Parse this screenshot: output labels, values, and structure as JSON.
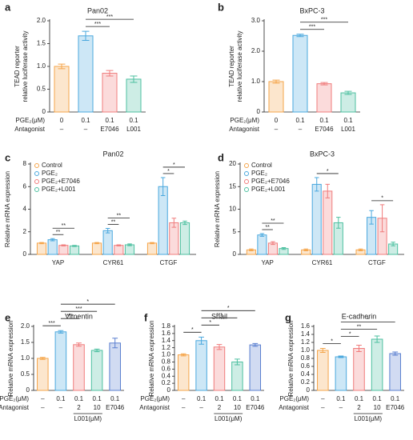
{
  "chart_data": [
    {
      "type": "bar",
      "panel": "a",
      "title": "Pan02",
      "ylabel": [
        "TEAD reporter",
        "relative luciferase activity"
      ],
      "values": [
        1.0,
        1.67,
        0.85,
        0.72
      ],
      "errors": [
        0.05,
        0.1,
        0.06,
        0.07
      ],
      "colors": [
        "#f5a54a",
        "#4aa8de",
        "#f07c7c",
        "#4dc0a0"
      ],
      "ylim": [
        0,
        2.0
      ],
      "yticks": [
        0,
        0.5,
        {
          "value": 1.0,
          "label": "1.0"
        },
        1.5,
        {
          "value": 2.0,
          "label": "2.0"
        }
      ],
      "rows": [
        {
          "label": "PGE₂(μM)",
          "values": [
            "0",
            "0.1",
            "0.1",
            "0.1"
          ]
        },
        {
          "label": "Antagonist",
          "values": [
            "–",
            "–",
            "E7046",
            "L001"
          ]
        }
      ],
      "comparisons": [
        {
          "from": 1,
          "to": 2,
          "label": "***"
        },
        {
          "from": 1,
          "to": 3,
          "label": "***"
        }
      ]
    },
    {
      "type": "bar",
      "panel": "b",
      "title": "BxPC-3",
      "ylabel": [
        "TEAD reporter",
        "relative luciferase activity"
      ],
      "values": [
        1.0,
        2.52,
        0.93,
        0.63
      ],
      "errors": [
        0.05,
        0.04,
        0.04,
        0.05
      ],
      "colors": [
        "#f5a54a",
        "#4aa8de",
        "#f07c7c",
        "#4dc0a0"
      ],
      "ylim": [
        0,
        3.0
      ],
      "yticks": [
        0,
        {
          "value": 1.0,
          "label": "1.0"
        },
        {
          "value": 2.0,
          "label": "2.0"
        },
        {
          "value": 3.0,
          "label": "3.0"
        }
      ],
      "rows": [
        {
          "label": "PGE₂(μM)",
          "values": [
            "0",
            "0.1",
            "0.1",
            "0.1"
          ]
        },
        {
          "label": "Antagonist",
          "values": [
            "–",
            "–",
            "E7046",
            "L001"
          ]
        }
      ],
      "comparisons": [
        {
          "from": 1,
          "to": 2,
          "label": "***"
        },
        {
          "from": 1,
          "to": 3,
          "label": "***"
        }
      ]
    },
    {
      "type": "grouped_bar",
      "panel": "c",
      "title": "Pan02",
      "ylabel": "Relative mRNA expression",
      "categories": [
        "YAP",
        "CYR61",
        "CTGF"
      ],
      "series": [
        {
          "name": "Control",
          "color": "#f5a54a",
          "values": [
            1.0,
            1.0,
            1.0
          ],
          "errors": [
            0.05,
            0.05,
            0.05
          ]
        },
        {
          "name": "PGE₂",
          "color": "#4aa8de",
          "values": [
            1.3,
            2.1,
            6.0
          ],
          "errors": [
            0.1,
            0.2,
            0.8
          ]
        },
        {
          "name": "PGE₂+E7046",
          "color": "#f07c7c",
          "values": [
            0.8,
            0.8,
            2.8
          ],
          "errors": [
            0.05,
            0.05,
            0.4
          ]
        },
        {
          "name": "PGE₂+L001",
          "color": "#4dc0a0",
          "values": [
            0.75,
            0.85,
            2.8
          ],
          "errors": [
            0.05,
            0.08,
            0.15
          ]
        }
      ],
      "ylim": [
        0,
        8
      ],
      "yticks": [
        0,
        2,
        4,
        6,
        8
      ],
      "comparisons": [
        {
          "group": 0,
          "from": 1,
          "to": 2,
          "label": "**"
        },
        {
          "group": 0,
          "from": 1,
          "to": 3,
          "label": "**"
        },
        {
          "group": 1,
          "from": 1,
          "to": 2,
          "label": "**"
        },
        {
          "group": 1,
          "from": 1,
          "to": 3,
          "label": "**"
        },
        {
          "group": 2,
          "from": 1,
          "to": 2,
          "label": "*"
        },
        {
          "group": 2,
          "from": 1,
          "to": 3,
          "label": "*"
        }
      ]
    },
    {
      "type": "grouped_bar",
      "panel": "d",
      "title": "BxPC-3",
      "ylabel": "Relative mRNA expression",
      "categories": [
        "YAP",
        "CYR61",
        "CTGF"
      ],
      "series": [
        {
          "name": "Control",
          "color": "#f5a54a",
          "values": [
            1.0,
            1.0,
            1.0
          ],
          "errors": [
            0.2,
            0.2,
            0.2
          ]
        },
        {
          "name": "PGE₂",
          "color": "#4aa8de",
          "values": [
            4.3,
            15.5,
            8.2
          ],
          "errors": [
            0.3,
            1.5,
            1.5
          ]
        },
        {
          "name": "PGE₂+E7046",
          "color": "#f07c7c",
          "values": [
            2.5,
            14.0,
            8.0
          ],
          "errors": [
            0.3,
            1.5,
            3.0
          ]
        },
        {
          "name": "PGE₂+L001",
          "color": "#4dc0a0",
          "values": [
            1.3,
            7.0,
            2.3
          ],
          "errors": [
            0.2,
            1.2,
            0.4
          ]
        }
      ],
      "ylim": [
        0,
        20
      ],
      "yticks": [
        0,
        5,
        10,
        15,
        20
      ],
      "comparisons": [
        {
          "group": 0,
          "from": 1,
          "to": 2,
          "label": "**"
        },
        {
          "group": 0,
          "from": 1,
          "to": 3,
          "label": "**"
        },
        {
          "group": 1,
          "from": 1,
          "to": 3,
          "label": "*"
        },
        {
          "group": 2,
          "from": 1,
          "to": 3,
          "label": "*"
        }
      ]
    },
    {
      "type": "bar",
      "panel": "e",
      "title": "Vimentin",
      "ylabel": "Relative mRNA expression",
      "values": [
        1.0,
        1.83,
        1.43,
        1.25,
        1.48
      ],
      "errors": [
        0.03,
        0.04,
        0.05,
        0.04,
        0.15
      ],
      "colors": [
        "#f5a54a",
        "#4aa8de",
        "#f07c7c",
        "#4dc0a0",
        "#5a7fd0"
      ],
      "ylim": [
        0,
        2.0
      ],
      "yticks": [
        0,
        0.5,
        {
          "value": 1.0,
          "label": "1.0"
        },
        1.5,
        {
          "value": 2.0,
          "label": "2.0"
        }
      ],
      "rows": [
        {
          "label": "PGE₂(μM)",
          "values": [
            "–",
            "0.1",
            "0.1",
            "0.1",
            "0.1"
          ]
        },
        {
          "label": "Antagonist",
          "values": [
            "–",
            "–",
            "2",
            "10",
            "E7046"
          ]
        }
      ],
      "group_label": {
        "text": "L001(μM)",
        "from": 2,
        "to": 3
      },
      "comparisons": [
        {
          "from": 0,
          "to": 1,
          "label": "***"
        },
        {
          "from": 1,
          "to": 2,
          "label": "***"
        },
        {
          "from": 1,
          "to": 3,
          "label": "***"
        },
        {
          "from": 1,
          "to": 4,
          "label": "*"
        }
      ]
    },
    {
      "type": "bar",
      "panel": "f",
      "title": "Snail",
      "ylabel": "Relative mRNA expression",
      "values": [
        1.0,
        1.4,
        1.22,
        0.8,
        1.28
      ],
      "errors": [
        0.03,
        0.1,
        0.07,
        0.08,
        0.04
      ],
      "colors": [
        "#f5a54a",
        "#4aa8de",
        "#f07c7c",
        "#4dc0a0",
        "#5a7fd0"
      ],
      "ylim": [
        0,
        1.8
      ],
      "yticks": [
        0,
        0.2,
        0.4,
        0.6,
        0.8,
        {
          "value": 1.0,
          "label": "1.0"
        },
        1.2,
        1.4,
        1.6,
        1.8
      ],
      "rows": [
        {
          "label": "PGE₂(μM)",
          "values": [
            "–",
            "0.1",
            "0.1",
            "0.1",
            "0.1"
          ]
        },
        {
          "label": "Antagonist",
          "values": [
            "–",
            "–",
            "2",
            "10",
            "E7046"
          ]
        }
      ],
      "group_label": {
        "text": "L001(μM)",
        "from": 2,
        "to": 3
      },
      "comparisons": [
        {
          "from": 0,
          "to": 1,
          "label": "*"
        },
        {
          "from": 1,
          "to": 2,
          "label": "*"
        },
        {
          "from": 1,
          "to": 3,
          "label": "***"
        },
        {
          "from": 1,
          "to": 4,
          "label": "*"
        }
      ]
    },
    {
      "type": "bar",
      "panel": "g",
      "title": "E-cadherin",
      "ylabel": "Relative mRNA expression",
      "values": [
        1.0,
        0.84,
        1.05,
        1.28,
        0.92
      ],
      "errors": [
        0.05,
        0.02,
        0.08,
        0.08,
        0.04
      ],
      "colors": [
        "#f5a54a",
        "#4aa8de",
        "#f07c7c",
        "#4dc0a0",
        "#5a7fd0"
      ],
      "ylim": [
        0,
        1.6
      ],
      "yticks": [
        0,
        0.2,
        0.4,
        0.6,
        0.8,
        {
          "value": 1.0,
          "label": "1.0"
        },
        1.2,
        1.4,
        1.6
      ],
      "rows": [
        {
          "label": "PGE₂(μM)",
          "values": [
            "–",
            "0.1",
            "0.1",
            "0.1",
            "0.1"
          ]
        },
        {
          "label": "Antagonist",
          "values": [
            "–",
            "–",
            "2",
            "10",
            "E7046"
          ]
        }
      ],
      "group_label": {
        "text": "L001(μM)",
        "from": 2,
        "to": 3
      },
      "comparisons": [
        {
          "from": 0,
          "to": 1,
          "label": "*"
        },
        {
          "from": 1,
          "to": 2,
          "label": "*"
        },
        {
          "from": 1,
          "to": 3,
          "label": "**"
        },
        {
          "from": 1,
          "to": 4,
          "label": "*"
        }
      ]
    }
  ]
}
